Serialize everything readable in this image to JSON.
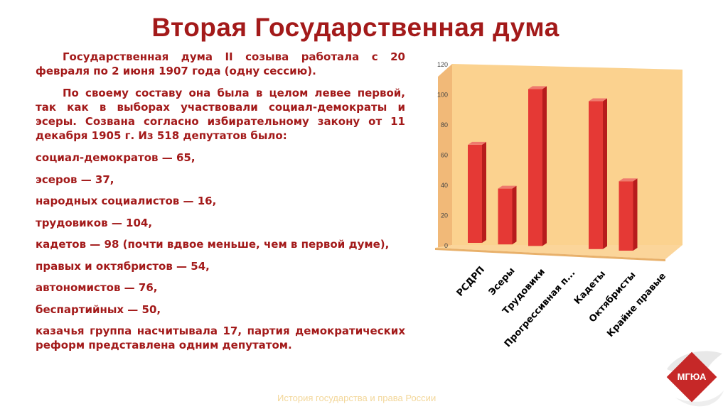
{
  "title": "Вторая Государственная дума",
  "paragraphs": [
    "Государственная дума II созыва работала с 20 февраля по 2 июня 1907 года (одну сессию).",
    "По своему составу она была в целом левее первой, так как в выборах участвовали социал-демократы и эсеры. Созвана согласно избирательному закону от 11 декабря 1905 г. Из 518 депутатов было:"
  ],
  "items": [
    "социал-демократов — 65,",
    "эсеров — 37,",
    "народных социалистов — 16,",
    "трудовиков — 104,",
    "кадетов — 98 (почти вдвое меньше, чем в первой думе),",
    "правых и октябристов — 54,",
    "автономистов — 76,",
    "беспартийных — 50,",
    "казачья группа насчитывала 17, партия демократических реформ представлена одним депутатом."
  ],
  "footer": "История государства и права России",
  "logo": {
    "text": "МГЮА",
    "color": "#c62828"
  },
  "chart_data": {
    "type": "bar",
    "categories": [
      "РСДРП",
      "Эсеры",
      "Трудовики",
      "Прогрессивная п...",
      "Кадеты",
      "Октябристы",
      "Крайне правые"
    ],
    "values": [
      65,
      37,
      104,
      0,
      98,
      46,
      0
    ],
    "ylim": [
      0,
      120
    ],
    "yticks": [
      "0",
      "20",
      "40",
      "60",
      "80",
      "100",
      "120"
    ],
    "grid": false,
    "bar_color": "#e53935",
    "background_color": "#fbd28f"
  }
}
